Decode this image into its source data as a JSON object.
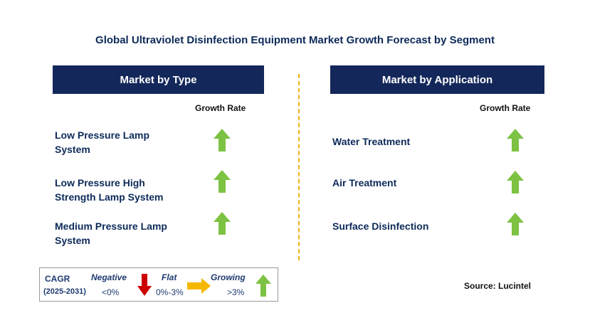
{
  "title": "Global Ultraviolet Disinfection Equipment Market Growth Forecast by Segment",
  "left_panel": {
    "header": "Market by Type",
    "growth_label": "Growth Rate",
    "rows": [
      {
        "line1": "Low Pressure Lamp",
        "line2": "System",
        "trend": "growing",
        "icon": "up-arrow-icon"
      },
      {
        "line1": "Low Pressure High",
        "line2": "Strength Lamp System",
        "trend": "growing",
        "icon": "up-arrow-icon"
      },
      {
        "line1": "Medium Pressure Lamp",
        "line2": "System",
        "trend": "growing",
        "icon": "up-arrow-icon"
      }
    ]
  },
  "right_panel": {
    "header": "Market by Application",
    "growth_label": "Growth Rate",
    "rows": [
      {
        "label": "Water Treatment",
        "trend": "growing",
        "icon": "up-arrow-icon"
      },
      {
        "label": "Air Treatment",
        "trend": "growing",
        "icon": "up-arrow-icon"
      },
      {
        "label": "Surface Disinfection",
        "trend": "growing",
        "icon": "up-arrow-icon"
      }
    ]
  },
  "legend": {
    "cagr": "CAGR",
    "period": "(2025-2031)",
    "negative": {
      "label": "Negative",
      "range": "<0%",
      "icon": "down-arrow-icon",
      "color": "#cc0000"
    },
    "flat": {
      "label": "Flat",
      "range": "0%-3%",
      "icon": "right-arrow-icon",
      "color": "#f5b800"
    },
    "growing": {
      "label": "Growing",
      "range": ">3%",
      "icon": "up-arrow-icon",
      "color": "#7dc242"
    }
  },
  "source": "Source: Lucintel",
  "colors": {
    "header_bg": "#13275a",
    "divider": "#f2b21c",
    "up_arrow": "#7dc242"
  }
}
